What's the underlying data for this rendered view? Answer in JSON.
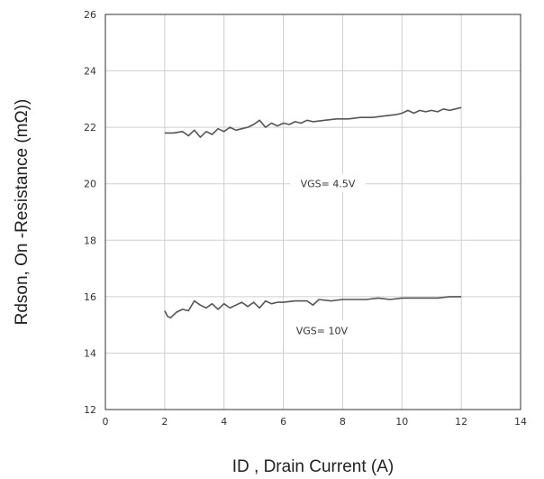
{
  "chart_data": {
    "type": "line",
    "title": "",
    "xlabel": "ID , Drain Current (A)",
    "ylabel": "Rdson, On -Resistance (mΩ))",
    "xlim": [
      0,
      14
    ],
    "ylim": [
      12,
      26
    ],
    "xticks": [
      "0",
      "2",
      "4",
      "6",
      "8",
      "10",
      "12",
      "14"
    ],
    "yticks": [
      "12",
      "14",
      "16",
      "18",
      "20",
      "22",
      "24",
      "26"
    ],
    "grid": true,
    "series": [
      {
        "name": "VGS= 4.5V",
        "x": [
          2.0,
          2.3,
          2.6,
          2.8,
          3.0,
          3.2,
          3.4,
          3.6,
          3.8,
          4.0,
          4.2,
          4.4,
          4.6,
          4.8,
          5.0,
          5.2,
          5.4,
          5.6,
          5.8,
          6.0,
          6.2,
          6.4,
          6.6,
          6.8,
          7.0,
          7.4,
          7.8,
          8.2,
          8.6,
          9.0,
          9.4,
          9.8,
          10.0,
          10.2,
          10.4,
          10.6,
          10.8,
          11.0,
          11.2,
          11.4,
          11.6,
          11.8,
          12.0
        ],
        "y": [
          21.8,
          21.8,
          21.85,
          21.7,
          21.9,
          21.65,
          21.85,
          21.75,
          21.95,
          21.85,
          22.0,
          21.9,
          21.95,
          22.0,
          22.1,
          22.25,
          22.0,
          22.15,
          22.05,
          22.15,
          22.1,
          22.2,
          22.15,
          22.25,
          22.2,
          22.25,
          22.3,
          22.3,
          22.35,
          22.35,
          22.4,
          22.45,
          22.5,
          22.6,
          22.5,
          22.6,
          22.55,
          22.6,
          22.55,
          22.65,
          22.6,
          22.65,
          22.7
        ]
      },
      {
        "name": "VGS= 10V",
        "x": [
          2.0,
          2.1,
          2.2,
          2.4,
          2.6,
          2.8,
          3.0,
          3.2,
          3.4,
          3.6,
          3.8,
          4.0,
          4.2,
          4.4,
          4.6,
          4.8,
          5.0,
          5.2,
          5.4,
          5.6,
          5.8,
          6.0,
          6.4,
          6.8,
          7.0,
          7.2,
          7.6,
          8.0,
          8.4,
          8.8,
          9.2,
          9.6,
          10.0,
          10.4,
          10.8,
          11.2,
          11.6,
          12.0
        ],
        "y": [
          15.5,
          15.3,
          15.25,
          15.45,
          15.55,
          15.5,
          15.85,
          15.7,
          15.6,
          15.75,
          15.55,
          15.75,
          15.6,
          15.7,
          15.8,
          15.65,
          15.8,
          15.6,
          15.85,
          15.75,
          15.8,
          15.8,
          15.85,
          15.85,
          15.7,
          15.9,
          15.85,
          15.9,
          15.9,
          15.9,
          15.95,
          15.9,
          15.95,
          15.95,
          15.95,
          15.95,
          16.0,
          16.0
        ]
      }
    ],
    "annotations": [
      {
        "text": "VGS= 4.5V",
        "x": 7.5,
        "y": 20.0
      },
      {
        "text": "VGS= 10V",
        "x": 7.3,
        "y": 14.8
      }
    ]
  }
}
